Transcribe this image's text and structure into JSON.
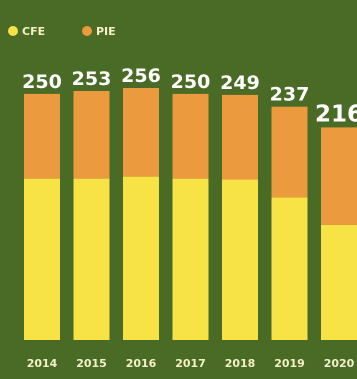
{
  "colors": {
    "background": "#4a6b26",
    "cfe": "#f7e346",
    "pie": "#eb9a3d",
    "text": "#ffffff",
    "tick_text": "#f4f0c8"
  },
  "legend": {
    "items": [
      {
        "label": "CFE",
        "color": "#f7e346"
      },
      {
        "label": "PIE",
        "color": "#eb9a3d"
      }
    ],
    "placement": "top-left"
  },
  "chart_data": {
    "type": "bar",
    "stacked": true,
    "title": "",
    "xlabel": "",
    "ylabel": "",
    "categories": [
      "2014",
      "2015",
      "2016",
      "2017",
      "2018",
      "2019",
      "2020"
    ],
    "series": [
      {
        "name": "CFE",
        "values": [
          164,
          164,
          166,
          164,
          163,
          145,
          117
        ]
      },
      {
        "name": "PIE",
        "values": [
          86,
          89,
          90,
          86,
          86,
          92,
          99
        ]
      }
    ],
    "totals": [
      "250",
      "253",
      "256",
      "250",
      "249",
      "237",
      "216"
    ],
    "ylim": [
      0,
      256
    ],
    "grid": false,
    "legend_placement": "top-left"
  }
}
